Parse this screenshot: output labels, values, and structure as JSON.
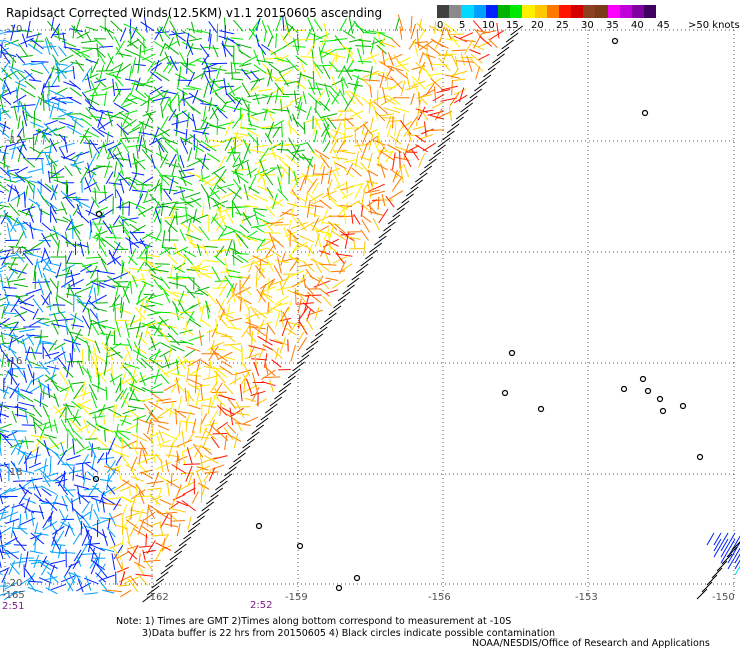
{
  "title": "Rapidsact Corrected Winds(12.5KM) v1.1 20150605 ascending",
  "legend": {
    "colors": [
      "#404040",
      "#8a8a8a",
      "#00d8ff",
      "#00a0ff",
      "#0020ff",
      "#00b400",
      "#00e800",
      "#fff000",
      "#ffc800",
      "#ff7800",
      "#ff1400",
      "#d40000",
      "#8c4020",
      "#7a3c18",
      "#ff00ff",
      "#c000d8",
      "#8000a0",
      "#400060"
    ],
    "labels": [
      "0",
      "5",
      "10",
      "15",
      "20",
      "25",
      "30",
      "35",
      "40",
      "45",
      ">50 knots"
    ]
  },
  "axes": {
    "lat_labels": [
      "-10",
      "-12",
      "-14",
      "-16",
      "-18",
      "-20"
    ],
    "lon_labels": [
      "-165",
      "-162",
      "-159",
      "-156",
      "-153",
      "-150"
    ]
  },
  "times": [
    "2:51",
    "2:52"
  ],
  "notes": [
    "Note: 1) Times are GMT 2)Times along bottom correspond to measurement at -10S",
    "3)Data buffer is 22 hrs from 20150605 4) Black circles indicate possible contamination"
  ],
  "credit": "NOAA/NESDIS/Office of Research and Applications"
}
